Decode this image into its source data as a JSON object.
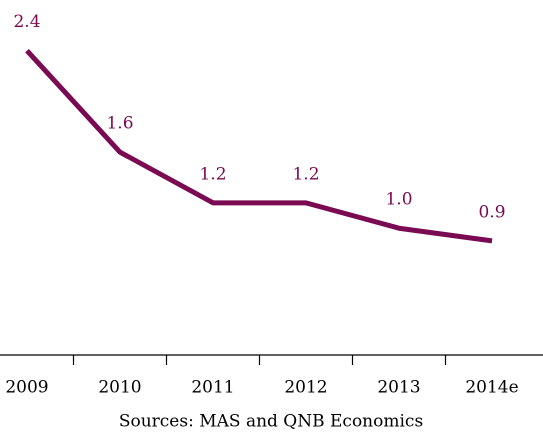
{
  "chart_data": {
    "type": "line",
    "categories": [
      "2009",
      "2010",
      "2011",
      "2012",
      "2013",
      "2014e"
    ],
    "series": [
      {
        "color": "#7a0a52",
        "values": [
          2.4,
          1.6,
          1.2,
          1.2,
          1.0,
          0.9
        ],
        "value_labels": [
          "2.4",
          "1.6",
          "1.2",
          "1.2",
          "1.0",
          "0.9"
        ]
      }
    ],
    "ylim": [
      0,
      2.8
    ],
    "source": "Sources: MAS and QNB Economics"
  }
}
